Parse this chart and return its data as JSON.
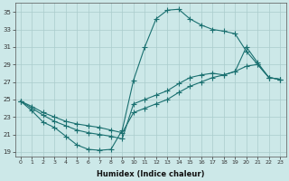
{
  "bg_color": "#cce8e8",
  "grid_color": "#aacccc",
  "line_color": "#1a7070",
  "marker_color": "#1a7070",
  "series1_x": [
    0,
    1,
    2,
    3,
    4,
    5,
    6,
    7,
    8,
    9,
    10,
    11,
    12,
    13,
    14,
    15,
    16,
    17,
    18,
    19,
    20,
    21,
    22,
    23
  ],
  "series1_y": [
    24.8,
    23.7,
    22.4,
    21.8,
    20.8,
    19.8,
    19.3,
    19.2,
    19.3,
    21.5,
    27.2,
    31.0,
    34.2,
    35.2,
    35.3,
    34.2,
    33.5,
    33.0,
    32.8,
    32.5,
    30.5,
    29.0,
    27.5,
    27.3
  ],
  "series2_x": [
    0,
    1,
    2,
    3,
    4,
    5,
    6,
    7,
    8,
    9,
    10,
    11,
    12,
    13,
    14,
    15,
    16,
    17,
    18,
    19,
    20,
    21,
    22,
    23
  ],
  "series2_y": [
    24.8,
    24.0,
    23.2,
    22.5,
    22.0,
    21.5,
    21.2,
    21.0,
    20.8,
    20.5,
    24.5,
    25.0,
    25.5,
    26.0,
    26.8,
    27.5,
    27.8,
    28.0,
    27.8,
    28.2,
    31.0,
    29.2,
    27.5,
    27.3
  ],
  "series3_x": [
    0,
    1,
    2,
    3,
    4,
    5,
    6,
    7,
    8,
    9,
    10,
    11,
    12,
    13,
    14,
    15,
    16,
    17,
    18,
    19,
    20,
    21,
    22,
    23
  ],
  "series3_y": [
    24.8,
    24.2,
    23.5,
    23.0,
    22.5,
    22.2,
    22.0,
    21.8,
    21.5,
    21.2,
    23.5,
    24.0,
    24.5,
    25.0,
    25.8,
    26.5,
    27.0,
    27.5,
    27.8,
    28.2,
    28.8,
    29.0,
    27.5,
    27.3
  ],
  "xlabel": "Humidex (Indice chaleur)",
  "xlim": [
    -0.5,
    23.5
  ],
  "ylim": [
    18.5,
    36.0
  ],
  "yticks": [
    19,
    21,
    23,
    25,
    27,
    29,
    31,
    33,
    35
  ],
  "xticks": [
    0,
    1,
    2,
    3,
    4,
    5,
    6,
    7,
    8,
    9,
    10,
    11,
    12,
    13,
    14,
    15,
    16,
    17,
    18,
    19,
    20,
    21,
    22,
    23
  ]
}
